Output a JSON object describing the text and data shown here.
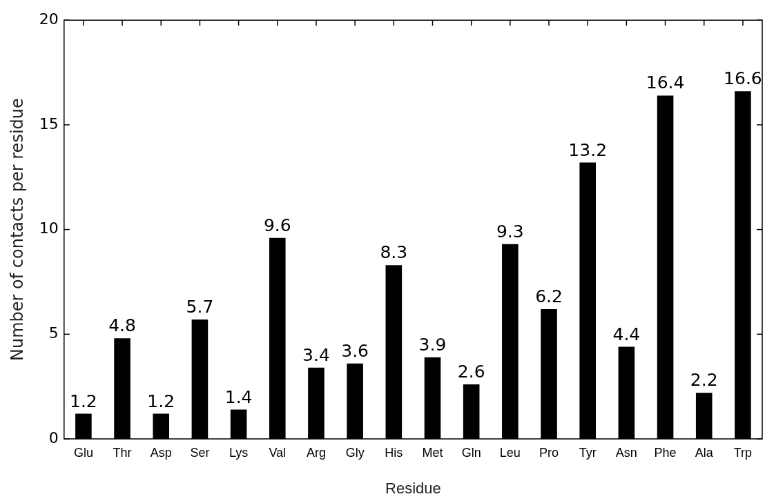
{
  "chart_data": {
    "type": "bar",
    "xlabel": "Residue",
    "ylabel": "Number of contacts per residue",
    "categories": [
      "Glu",
      "Thr",
      "Asp",
      "Ser",
      "Lys",
      "Val",
      "Arg",
      "Gly",
      "His",
      "Met",
      "Gln",
      "Leu",
      "Pro",
      "Tyr",
      "Asn",
      "Phe",
      "Ala",
      "Trp"
    ],
    "values": [
      1.2,
      4.8,
      1.2,
      5.7,
      1.4,
      9.6,
      3.4,
      3.6,
      8.3,
      3.9,
      2.6,
      9.3,
      6.2,
      13.2,
      4.4,
      16.4,
      2.2,
      16.6
    ],
    "color": "#000000",
    "ylim": [
      0,
      20
    ],
    "yticks": [
      0,
      5,
      10,
      15,
      20
    ],
    "data_labels": true
  }
}
